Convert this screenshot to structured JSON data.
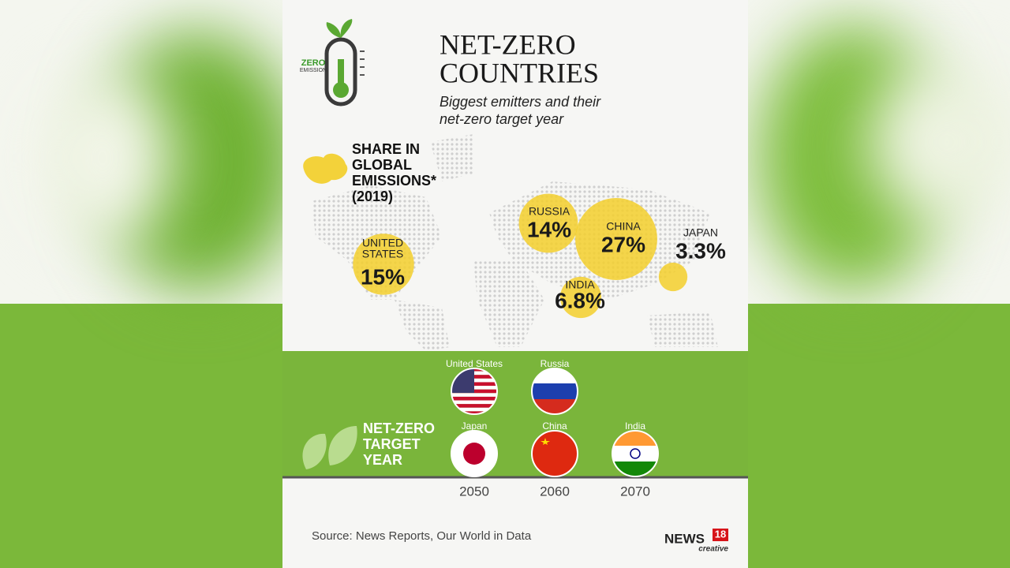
{
  "header": {
    "logo_text": [
      "ZERO",
      "EMISSION"
    ],
    "title_lines": [
      "NET-ZERO",
      "COUNTRIES"
    ],
    "subtitle_lines": [
      "Biggest emitters and their",
      "net-zero target year"
    ]
  },
  "emissions": {
    "heading_lines": [
      "SHARE IN",
      "GLOBAL",
      "EMISSIONS*",
      "(2019)"
    ],
    "countries": [
      {
        "name_lines": [
          "UNITED",
          "STATES"
        ],
        "share": 15,
        "share_label": "15%"
      },
      {
        "name_lines": [
          "RUSSIA"
        ],
        "share": 14,
        "share_label": "14%"
      },
      {
        "name_lines": [
          "CHINA"
        ],
        "share": 27,
        "share_label": "27%"
      },
      {
        "name_lines": [
          "INDIA"
        ],
        "share": 6.8,
        "share_label": "6.8%"
      },
      {
        "name_lines": [
          "JAPAN"
        ],
        "share": 3.3,
        "share_label": "3.3%"
      }
    ]
  },
  "target": {
    "heading_lines": [
      "NET-ZERO",
      "TARGET",
      "YEAR"
    ],
    "years": [
      2050,
      2060,
      2070
    ],
    "countries": [
      {
        "name": "United States",
        "year": 2050
      },
      {
        "name": "Russia",
        "year": 2060
      },
      {
        "name": "Japan",
        "year": 2050
      },
      {
        "name": "China",
        "year": 2060
      },
      {
        "name": "India",
        "year": 2070
      }
    ]
  },
  "source": "Source: News Reports, Our World in Data",
  "brand": {
    "name": "NEWS",
    "number": "18",
    "tag": "creative"
  }
}
